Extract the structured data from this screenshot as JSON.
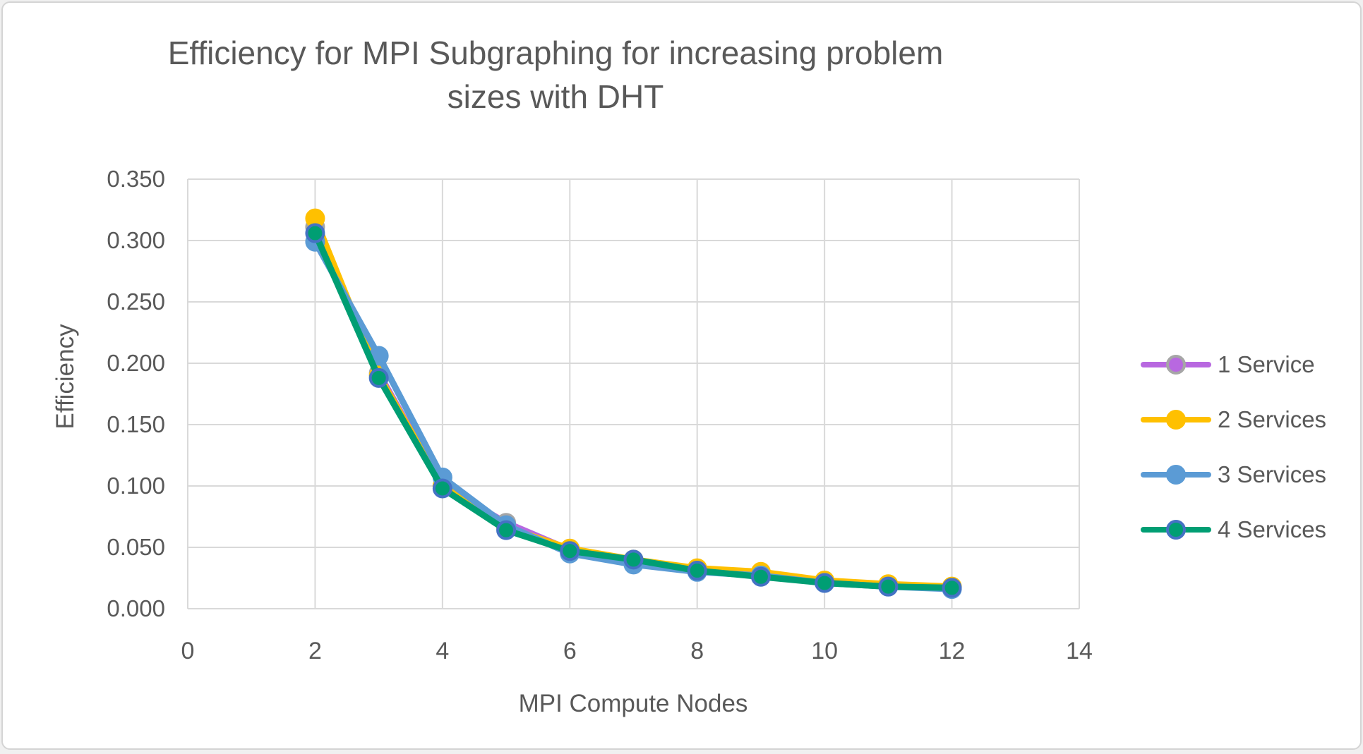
{
  "title": {
    "line1": "Efficiency for MPI Subgraphing for increasing problem",
    "line2": "sizes with DHT"
  },
  "axes": {
    "x": {
      "label": "MPI Compute Nodes",
      "ticks": [
        {
          "label": "0",
          "value": 0
        },
        {
          "label": "2",
          "value": 2
        },
        {
          "label": "4",
          "value": 4
        },
        {
          "label": "6",
          "value": 6
        },
        {
          "label": "8",
          "value": 8
        },
        {
          "label": "10",
          "value": 10
        },
        {
          "label": "12",
          "value": 12
        },
        {
          "label": "14",
          "value": 14
        }
      ]
    },
    "y": {
      "label": "Efficiency",
      "ticks": [
        {
          "label": "0.000",
          "value": 0.0
        },
        {
          "label": "0.050",
          "value": 0.05
        },
        {
          "label": "0.100",
          "value": 0.1
        },
        {
          "label": "0.150",
          "value": 0.15
        },
        {
          "label": "0.200",
          "value": 0.2
        },
        {
          "label": "0.250",
          "value": 0.25
        },
        {
          "label": "0.300",
          "value": 0.3
        },
        {
          "label": "0.350",
          "value": 0.35
        }
      ]
    }
  },
  "colors": {
    "text": "#595959",
    "grid": "#d9d9d9",
    "frame_border": "#d4d4d4",
    "background": "#ffffff"
  },
  "chart_data": {
    "type": "line",
    "title": "Efficiency for MPI Subgraphing for increasing problem sizes with DHT",
    "xlabel": "MPI Compute Nodes",
    "ylabel": "Efficiency",
    "xlim": [
      0,
      14
    ],
    "ylim": [
      0.0,
      0.35
    ],
    "grid": true,
    "legend_position": "right",
    "x": [
      2,
      3,
      4,
      5,
      6,
      7,
      8,
      9,
      10,
      11,
      12
    ],
    "series": [
      {
        "name": "1 Service",
        "color": "#b868e0",
        "marker_fill": "#b868e0",
        "marker_stroke": "#a6a6a6",
        "values": [
          0.311,
          0.192,
          0.1,
          0.07,
          0.048,
          0.038,
          0.031,
          0.027,
          0.022,
          0.019,
          0.017
        ]
      },
      {
        "name": "2 Services",
        "color": "#ffc000",
        "marker_fill": "#ffc000",
        "marker_stroke": "#ffc000",
        "values": [
          0.318,
          0.19,
          0.1,
          0.066,
          0.049,
          0.04,
          0.033,
          0.03,
          0.023,
          0.02,
          0.018
        ]
      },
      {
        "name": "3 Services",
        "color": "#5b9bd5",
        "marker_fill": "#5b9bd5",
        "marker_stroke": "#5b9bd5",
        "values": [
          0.299,
          0.206,
          0.107,
          0.068,
          0.045,
          0.036,
          0.03,
          0.027,
          0.021,
          0.018,
          0.016
        ]
      },
      {
        "name": "4 Services",
        "color": "#009e73",
        "marker_fill": "#009e73",
        "marker_stroke": "#4472c4",
        "values": [
          0.306,
          0.188,
          0.098,
          0.064,
          0.047,
          0.04,
          0.031,
          0.026,
          0.021,
          0.018,
          0.017
        ]
      }
    ]
  }
}
